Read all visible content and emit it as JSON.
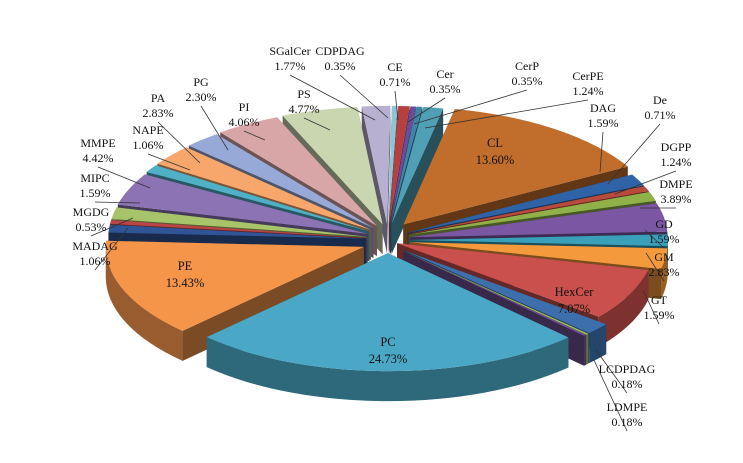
{
  "chart_data": {
    "type": "pie",
    "style": "3d-exploded",
    "title": "",
    "slices": [
      {
        "name": "CE",
        "value": 0.71,
        "label": "0.71%",
        "color": "#b5403f"
      },
      {
        "name": "Cer",
        "value": 0.35,
        "label": "0.35%",
        "color": "#6a4c9c"
      },
      {
        "name": "CerP",
        "value": 0.35,
        "label": "0.35%",
        "color": "#3f86a6"
      },
      {
        "name": "CerPE",
        "value": 1.24,
        "label": "1.24%",
        "color": "#4fa0b5"
      },
      {
        "name": "CL",
        "value": 13.6,
        "label": "13.60%",
        "color": "#c16d2b"
      },
      {
        "name": "DAG",
        "value": 1.59,
        "label": "1.59%",
        "color": "#2f63a8"
      },
      {
        "name": "De",
        "value": 0.71,
        "label": "0.71%",
        "color": "#b84a3b"
      },
      {
        "name": "DGPP",
        "value": 1.24,
        "label": "1.24%",
        "color": "#90b04a"
      },
      {
        "name": "DMPE",
        "value": 3.89,
        "label": "3.89%",
        "color": "#7a56a3"
      },
      {
        "name": "GD",
        "value": 1.59,
        "label": "1.59%",
        "color": "#3aa0ba"
      },
      {
        "name": "GM",
        "value": 2.83,
        "label": "2.83%",
        "color": "#f59a3c"
      },
      {
        "name": "HexCer",
        "value": 7.07,
        "label": "7.07%",
        "color": "#c9504c"
      },
      {
        "name": "GT",
        "value": 1.59,
        "label": "1.59%",
        "color": "#3e6fad"
      },
      {
        "name": "LCDPDAG",
        "value": 0.18,
        "label": "0.18%",
        "color": "#9dbb5c"
      },
      {
        "name": "LDMPE",
        "value": 0.18,
        "label": "0.18%",
        "color": "#6f4f94"
      },
      {
        "name": "PC",
        "value": 24.73,
        "label": "24.73%",
        "color": "#4aa8c6"
      },
      {
        "name": "PE",
        "value": 13.43,
        "label": "13.43%",
        "color": "#f5954a"
      },
      {
        "name": "MADAG",
        "value": 1.06,
        "label": "1.06%",
        "color": "#2f5597"
      },
      {
        "name": "MGDG",
        "value": 0.53,
        "label": "0.53%",
        "color": "#b94545"
      },
      {
        "name": "MIPC",
        "value": 1.59,
        "label": "1.59%",
        "color": "#a8c46a"
      },
      {
        "name": "MMPE",
        "value": 4.42,
        "label": "4.42%",
        "color": "#8c73b4"
      },
      {
        "name": "NAPE",
        "value": 1.06,
        "label": "1.06%",
        "color": "#4fb0c6"
      },
      {
        "name": "PA",
        "value": 2.83,
        "label": "2.83%",
        "color": "#f7a76c"
      },
      {
        "name": "PG",
        "value": 2.3,
        "label": "2.30%",
        "color": "#97a9d6"
      },
      {
        "name": "PI",
        "value": 4.06,
        "label": "4.06%",
        "color": "#d9a6a8"
      },
      {
        "name": "PS",
        "value": 4.77,
        "label": "4.77%",
        "color": "#c9d6b0"
      },
      {
        "name": "SGalCer",
        "value": 1.77,
        "label": "1.77%",
        "color": "#b8b0d0"
      },
      {
        "name": "CDPDAG",
        "value": 0.35,
        "label": "0.35%",
        "color": "#8fc4d6"
      }
    ]
  }
}
